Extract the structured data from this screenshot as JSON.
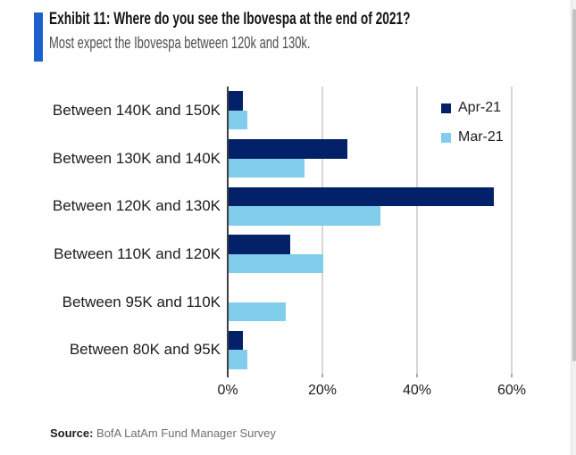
{
  "header": {
    "title": "Exhibit 11: Where do you see the Ibovespa at the end of 2021?",
    "subtitle": "Most expect the Ibovespa between 120k and 130k.",
    "accent_color": "#1B5FD1"
  },
  "chart_data": {
    "type": "bar",
    "orientation": "horizontal",
    "title": "Exhibit 11: Where do you see the Ibovespa at the end of 2021?",
    "subtitle": "Most expect the Ibovespa between 120k and 130k.",
    "categories": [
      "Between 140K and 150K",
      "Between 130K and 140K",
      "Between 120K and 130K",
      "Between 110K and 120K",
      "Between 95K and 110K",
      "Between 80K and 95K"
    ],
    "series": [
      {
        "name": "Apr-21",
        "color": "#032169",
        "values": [
          3,
          25,
          56,
          13,
          0,
          3
        ]
      },
      {
        "name": "Mar-21",
        "color": "#80CEEB",
        "values": [
          4,
          16,
          32,
          20,
          12,
          4
        ]
      }
    ],
    "unit": "%",
    "x_ticks": [
      "0%",
      "20%",
      "40%",
      "60%"
    ],
    "x_tick_values": [
      0,
      20,
      40,
      60
    ],
    "xlim": [
      0,
      60
    ],
    "grid": true,
    "legend_position": "top-right",
    "axis_color": "#3f3f3f",
    "gridline_color": "#d6d6d6"
  },
  "source": {
    "label": "Source:",
    "text": "BofA LatAm Fund Manager Survey"
  }
}
